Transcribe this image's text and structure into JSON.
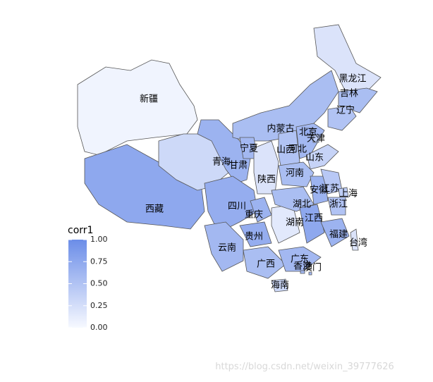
{
  "map": {
    "legend": {
      "title": "corr1",
      "ticks": [
        {
          "value": 1,
          "label": "1.00"
        },
        {
          "value": 0.75,
          "label": "0.75"
        },
        {
          "value": 0.5,
          "label": "0.50"
        },
        {
          "value": 0.25,
          "label": "0.25"
        },
        {
          "value": 0,
          "label": "0.00"
        }
      ]
    },
    "scale": {
      "lim": [
        0,
        1
      ],
      "low": "#f7f9ff",
      "high": "#6b8de8"
    },
    "regions": [
      {
        "name": "新疆",
        "value": 0.05
      },
      {
        "name": "西藏",
        "value": 0.75
      },
      {
        "name": "青海",
        "value": 0.3
      },
      {
        "name": "甘肃",
        "value": 0.65
      },
      {
        "name": "内蒙古",
        "value": 0.55
      },
      {
        "name": "黑龙江",
        "value": 0.2
      },
      {
        "name": "吉林",
        "value": 0.55
      },
      {
        "name": "辽宁",
        "value": 0.5
      },
      {
        "name": "宁夏",
        "value": 0.6
      },
      {
        "name": "陕西",
        "value": 0.2
      },
      {
        "name": "山西",
        "value": 0.5
      },
      {
        "name": "河北",
        "value": 0.6
      },
      {
        "name": "北京",
        "value": 0.7
      },
      {
        "name": "天津",
        "value": 0.4
      },
      {
        "name": "山东",
        "value": 0.35
      },
      {
        "name": "河南",
        "value": 0.55
      },
      {
        "name": "四川",
        "value": 0.7
      },
      {
        "name": "重庆",
        "value": 0.65
      },
      {
        "name": "云南",
        "value": 0.6
      },
      {
        "name": "贵州",
        "value": 0.7
      },
      {
        "name": "广西",
        "value": 0.55
      },
      {
        "name": "广东",
        "value": 0.6
      },
      {
        "name": "海南",
        "value": 0.3
      },
      {
        "name": "湖南",
        "value": 0.15
      },
      {
        "name": "湖北",
        "value": 0.55
      },
      {
        "name": "江西",
        "value": 0.75
      },
      {
        "name": "安徽",
        "value": 0.65
      },
      {
        "name": "江苏",
        "value": 0.45
      },
      {
        "name": "上海",
        "value": 0.4
      },
      {
        "name": "浙江",
        "value": 0.5
      },
      {
        "name": "福建",
        "value": 0.65
      },
      {
        "name": "台湾",
        "value": 0.2
      },
      {
        "name": "香港",
        "value": 0.6
      },
      {
        "name": "澳门",
        "value": 0.6
      }
    ],
    "watermark": "https://blog.csdn.net/weixin_39777626"
  }
}
